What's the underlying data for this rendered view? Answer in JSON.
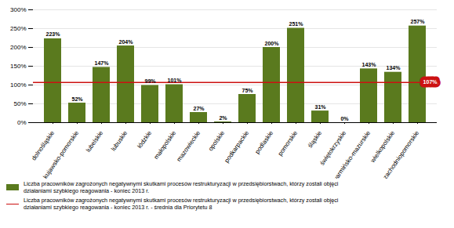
{
  "chart_data": {
    "type": "bar",
    "categories": [
      "dolnośląskie",
      "kujawsko-pomorskie",
      "lubelskie",
      "lubuskie",
      "łódzkie",
      "małopolskie",
      "mazowieckie",
      "opolskie",
      "podkarpackie",
      "podlaskie",
      "pomorskie",
      "śląskie",
      "świętokrzyskie",
      "warmińsko-mazurskie",
      "wielkopolskie",
      "zachodniopomorskie"
    ],
    "series": [
      {
        "name": "Liczba pracowników zagrożonych negatywnymi skutkami procesów restrukturyzacji w przedsiębiorstwach, którzy zostali objęci\ndziałaniami szybkiego reagowania - koniec 2013 r.",
        "type": "bar",
        "color": "#5a7a1e",
        "values": [
          223,
          52,
          147,
          204,
          99,
          101,
          27,
          2,
          75,
          200,
          251,
          31,
          0,
          143,
          134,
          257
        ],
        "value_labels": [
          "223%",
          "52%",
          "147%",
          "204%",
          "99%",
          "101%",
          "27%",
          "2%",
          "75%",
          "200%",
          "251%",
          "31%",
          "0%",
          "143%",
          "134%",
          "257%"
        ]
      }
    ],
    "reference_line": {
      "name": "Liczba pracowników zagrożonych negatywnymi skutkami procesów restrukturyzacji w przedsiębiorstwach, którzy zostali objęci\ndziałaniami szybkiego reagowania - koniec 2013 r. - średnia dla Priorytetu 8",
      "value": 107,
      "label": "107%",
      "color": "#cc1111"
    },
    "ylim": [
      0,
      300
    ],
    "yticks": [
      {
        "value": 0,
        "label": "0%"
      },
      {
        "value": 50,
        "label": "50%"
      },
      {
        "value": 100,
        "label": "100%"
      },
      {
        "value": 150,
        "label": "150%"
      },
      {
        "value": 200,
        "label": "200%"
      },
      {
        "value": 250,
        "label": "250%"
      },
      {
        "value": 300,
        "label": "300%"
      }
    ],
    "grid": true,
    "data_labels": true,
    "legend": "bottom"
  }
}
